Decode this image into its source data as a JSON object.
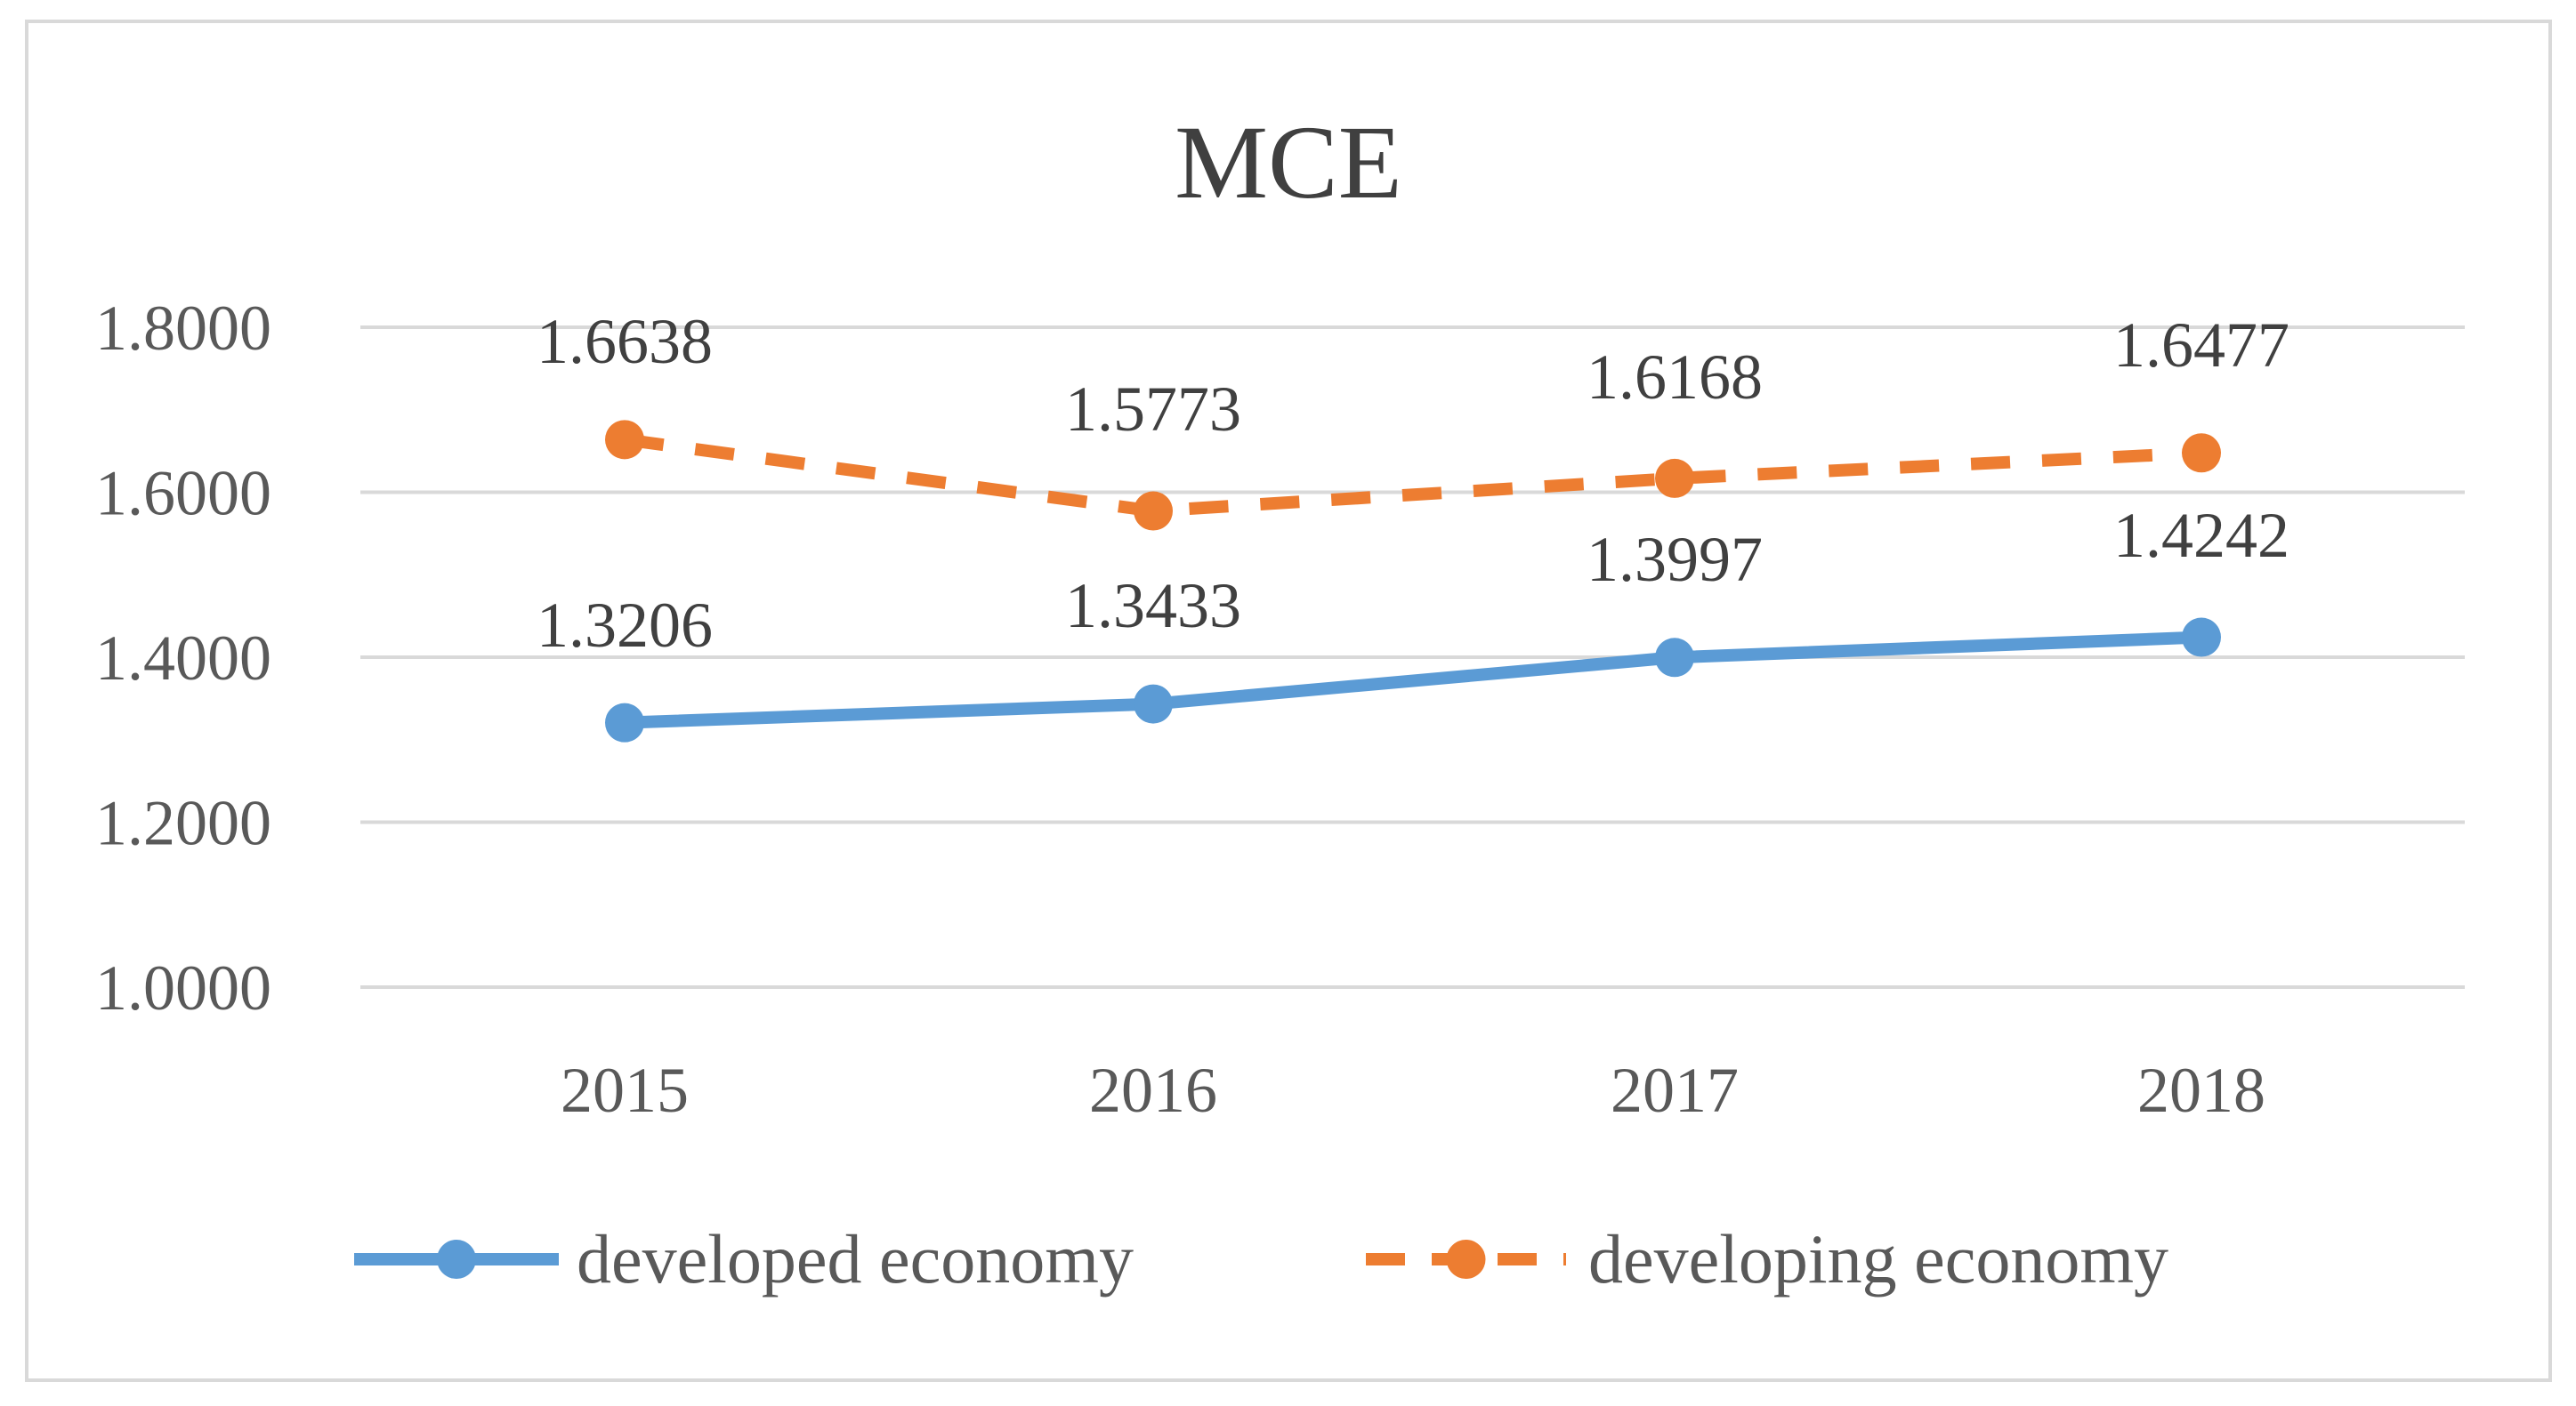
{
  "chart_data": {
    "type": "line",
    "title": "MCE",
    "categories": [
      "2015",
      "2016",
      "2017",
      "2018"
    ],
    "ylim": [
      1.0,
      1.8
    ],
    "yticks": [
      "1.0000",
      "1.2000",
      "1.4000",
      "1.6000",
      "1.8000"
    ],
    "ytick_values": [
      1.0,
      1.2,
      1.4,
      1.6,
      1.8
    ],
    "grid": true,
    "legend_position": "bottom",
    "series": [
      {
        "name": "developed economy",
        "values": [
          1.3206,
          1.3433,
          1.3997,
          1.4242
        ],
        "labels": [
          "1.3206",
          "1.3433",
          "1.3997",
          "1.4242"
        ],
        "color": "#5b9bd5",
        "dash": "solid"
      },
      {
        "name": "developing economy",
        "values": [
          1.6638,
          1.5773,
          1.6168,
          1.6477
        ],
        "labels": [
          "1.6638",
          "1.5773",
          "1.6168",
          "1.6477"
        ],
        "color": "#ed7d31",
        "dash": "dashed"
      }
    ]
  }
}
